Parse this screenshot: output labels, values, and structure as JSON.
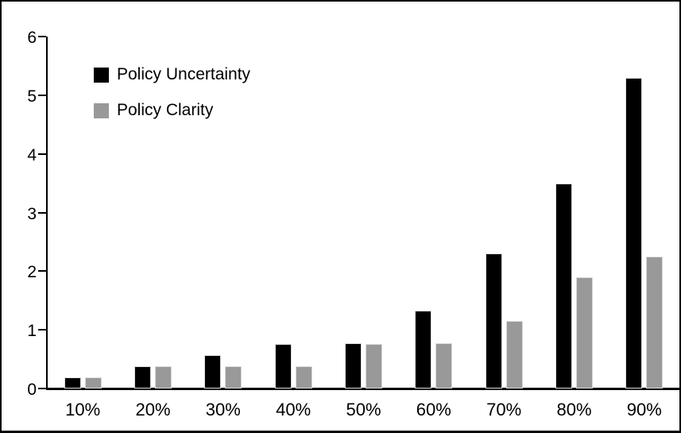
{
  "chart_data": {
    "type": "bar",
    "title": "",
    "xlabel": "",
    "ylabel": "",
    "categories": [
      "10%",
      "20%",
      "30%",
      "40%",
      "50%",
      "60%",
      "70%",
      "80%",
      "90%"
    ],
    "series": [
      {
        "name": "Policy Uncertainty",
        "color": "#000000",
        "values": [
          0.19,
          0.38,
          0.57,
          0.76,
          0.77,
          1.33,
          2.3,
          3.5,
          5.3
        ]
      },
      {
        "name": "Policy Clarity",
        "color": "#999999",
        "values": [
          0.19,
          0.38,
          0.38,
          0.38,
          0.76,
          0.77,
          1.15,
          1.9,
          2.25
        ]
      }
    ],
    "ylim": [
      0,
      6
    ],
    "yticks": [
      0,
      1,
      2,
      3,
      4,
      5,
      6
    ],
    "grid": false,
    "legend_position": "upper-left-inside",
    "axis_color": "#000000",
    "bar_edge_color": "#d9d9d9",
    "background_color": "#ffffff"
  }
}
